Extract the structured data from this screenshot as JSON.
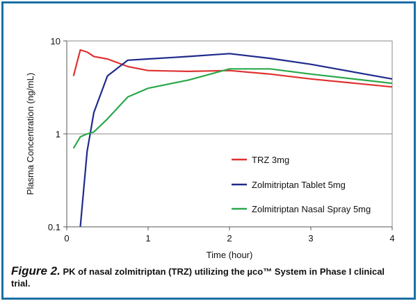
{
  "chart_data": {
    "type": "line",
    "title": "",
    "xlabel": "Time (hour)",
    "ylabel": "Plasma Concentration (ng/mL)",
    "xlim": [
      0,
      4
    ],
    "ylim": [
      0.1,
      10
    ],
    "yscale": "log",
    "x_ticks": [
      "0",
      "1",
      "2",
      "3",
      "4"
    ],
    "y_ticks": [
      "0.1",
      "1",
      "10"
    ],
    "grid": "horizontal at 1 and 10",
    "legend_position": "inside-right",
    "series": [
      {
        "name": "TRZ 3mg",
        "color": "#e03030",
        "x": [
          0.083,
          0.167,
          0.25,
          0.333,
          0.5,
          0.75,
          1,
          1.5,
          2,
          2.5,
          3,
          4
        ],
        "y": [
          4.2,
          8.0,
          7.6,
          6.8,
          6.4,
          5.3,
          4.8,
          4.7,
          4.8,
          4.4,
          3.9,
          3.2
        ]
      },
      {
        "name": "Zolmitriptan Tablet 5mg",
        "color": "#1f2a8c",
        "x": [
          0.167,
          0.25,
          0.333,
          0.5,
          0.75,
          1,
          1.5,
          2,
          2.5,
          3,
          4
        ],
        "y": [
          0.1,
          0.65,
          1.7,
          4.2,
          6.2,
          6.4,
          6.8,
          7.3,
          6.5,
          5.6,
          3.9
        ]
      },
      {
        "name": "Zolmitriptan Nasal Spray 5mg",
        "color": "#2aa84a",
        "x": [
          0.083,
          0.167,
          0.25,
          0.333,
          0.5,
          0.75,
          1,
          1.5,
          2,
          2.5,
          3,
          4
        ],
        "y": [
          0.7,
          0.93,
          1.0,
          1.05,
          1.45,
          2.5,
          3.1,
          3.8,
          5.0,
          5.0,
          4.4,
          3.5
        ]
      }
    ]
  },
  "caption": {
    "figure_label": "Figure 2.",
    "text": "PK of nasal zolmitriptan (TRZ) utilizing the µco™ System in Phase I clinical trial."
  }
}
